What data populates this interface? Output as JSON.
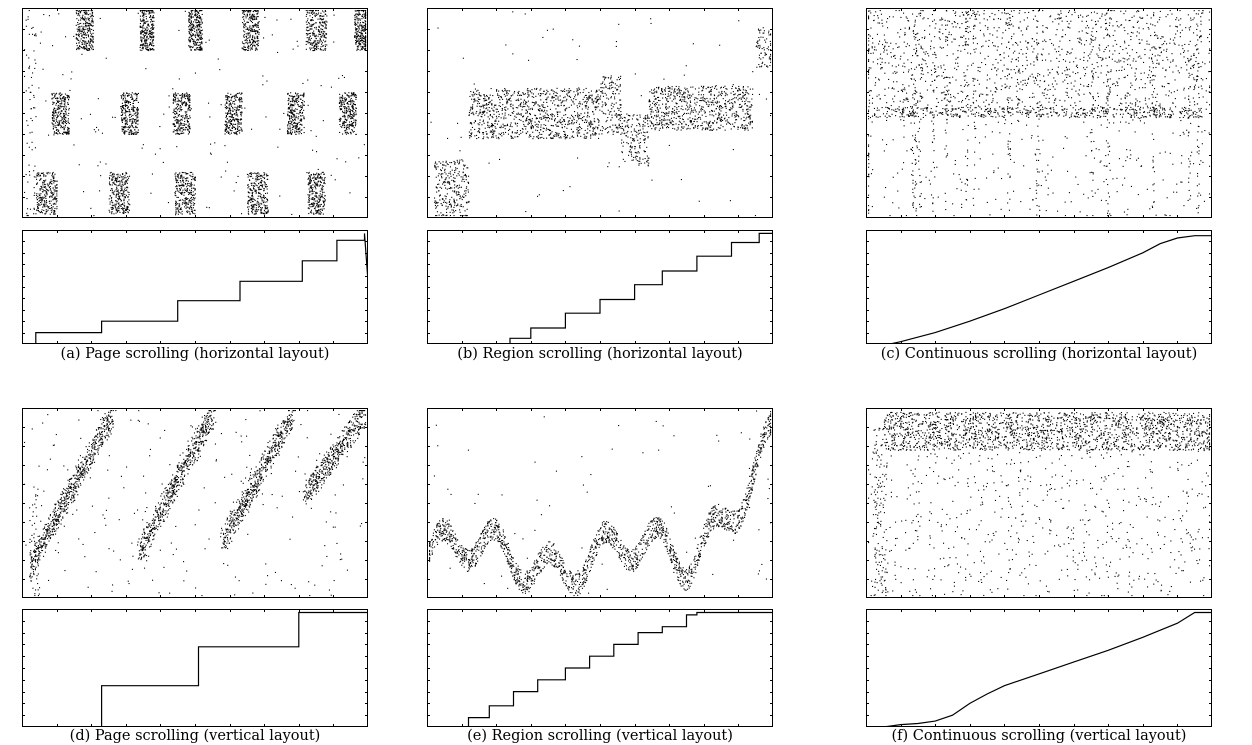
{
  "figure": {
    "panels": [
      {
        "caption": "(a) Page scrolling (horizontal layout)",
        "chart_data": [
          {
            "type": "scatter",
            "title": "",
            "xlabel": "",
            "ylabel": "",
            "grid": false,
            "pattern": "page-horizontal",
            "description_levels": [
              "bottom",
              "middle",
              "top"
            ]
          },
          {
            "type": "line",
            "title": "",
            "xlabel": "",
            "ylabel": "",
            "xlim": [
              0,
              1
            ],
            "ylim": [
              0,
              1
            ],
            "x": [
              0,
              0.04,
              0.04,
              0.23,
              0.23,
              0.45,
              0.45,
              0.63,
              0.63,
              0.81,
              0.81,
              0.91,
              0.91,
              0.99,
              0.99,
              1.0
            ],
            "y": [
              0.0,
              0.0,
              0.1,
              0.1,
              0.2,
              0.2,
              0.38,
              0.38,
              0.55,
              0.55,
              0.73,
              0.73,
              0.91,
              0.91,
              0.97,
              0.55
            ]
          }
        ]
      },
      {
        "caption": "(b) Region scrolling (horizontal layout)",
        "chart_data": [
          {
            "type": "scatter",
            "title": "",
            "xlabel": "",
            "ylabel": "",
            "grid": false,
            "pattern": "region-horizontal"
          },
          {
            "type": "line",
            "title": "",
            "xlabel": "",
            "ylabel": "",
            "xlim": [
              0,
              1
            ],
            "ylim": [
              0,
              1
            ],
            "x": [
              0.24,
              0.24,
              0.3,
              0.3,
              0.4,
              0.4,
              0.5,
              0.5,
              0.6,
              0.6,
              0.68,
              0.68,
              0.78,
              0.78,
              0.88,
              0.88,
              0.96,
              0.96,
              1.0
            ],
            "y": [
              0.0,
              0.05,
              0.05,
              0.14,
              0.14,
              0.27,
              0.27,
              0.39,
              0.39,
              0.52,
              0.52,
              0.64,
              0.64,
              0.77,
              0.77,
              0.89,
              0.89,
              0.97,
              0.97
            ]
          }
        ]
      },
      {
        "caption": "(c) Continuous scrolling (horizontal layout)",
        "chart_data": [
          {
            "type": "scatter",
            "title": "",
            "xlabel": "",
            "ylabel": "",
            "grid": false,
            "pattern": "continuous-horizontal"
          },
          {
            "type": "line",
            "title": "",
            "xlabel": "",
            "ylabel": "",
            "xlim": [
              0,
              1
            ],
            "ylim": [
              0,
              1
            ],
            "x": [
              0.07,
              0.1,
              0.2,
              0.3,
              0.4,
              0.5,
              0.6,
              0.7,
              0.8,
              0.85,
              0.9,
              0.95,
              1.0
            ],
            "y": [
              0.0,
              0.02,
              0.1,
              0.2,
              0.31,
              0.43,
              0.55,
              0.67,
              0.8,
              0.88,
              0.93,
              0.95,
              0.95
            ]
          }
        ]
      },
      {
        "caption": "(d) Page scrolling (vertical layout)",
        "chart_data": [
          {
            "type": "scatter",
            "title": "",
            "xlabel": "",
            "ylabel": "",
            "grid": false,
            "pattern": "page-vertical"
          },
          {
            "type": "line",
            "title": "",
            "xlabel": "",
            "ylabel": "",
            "xlim": [
              0,
              1
            ],
            "ylim": [
              0,
              1
            ],
            "x": [
              0.23,
              0.23,
              0.51,
              0.51,
              0.8,
              0.8,
              1.0
            ],
            "y": [
              0.0,
              0.35,
              0.35,
              0.68,
              0.68,
              0.97,
              0.97
            ]
          }
        ]
      },
      {
        "caption": "(e) Region scrolling (vertical layout)",
        "chart_data": [
          {
            "type": "scatter",
            "title": "",
            "xlabel": "",
            "ylabel": "",
            "grid": false,
            "pattern": "region-vertical"
          },
          {
            "type": "line",
            "title": "",
            "xlabel": "",
            "ylabel": "",
            "xlim": [
              0,
              1
            ],
            "ylim": [
              0,
              1
            ],
            "x": [
              0.1,
              0.12,
              0.12,
              0.18,
              0.18,
              0.25,
              0.25,
              0.32,
              0.32,
              0.4,
              0.4,
              0.47,
              0.47,
              0.54,
              0.54,
              0.61,
              0.61,
              0.68,
              0.68,
              0.75,
              0.75,
              0.78,
              0.78,
              1.0
            ],
            "y": [
              0.0,
              0.0,
              0.08,
              0.08,
              0.18,
              0.18,
              0.3,
              0.3,
              0.4,
              0.4,
              0.5,
              0.5,
              0.6,
              0.6,
              0.7,
              0.7,
              0.8,
              0.8,
              0.85,
              0.85,
              0.95,
              0.95,
              0.97,
              0.97
            ]
          }
        ]
      },
      {
        "caption": "(f) Continuous scrolling (vertical layout)",
        "chart_data": [
          {
            "type": "scatter",
            "title": "",
            "xlabel": "",
            "ylabel": "",
            "grid": false,
            "pattern": "continuous-vertical"
          },
          {
            "type": "line",
            "title": "",
            "xlabel": "",
            "ylabel": "",
            "xlim": [
              0,
              1
            ],
            "ylim": [
              0,
              1
            ],
            "x": [
              0.05,
              0.1,
              0.15,
              0.2,
              0.25,
              0.3,
              0.35,
              0.4,
              0.5,
              0.6,
              0.7,
              0.8,
              0.9,
              0.95,
              1.0
            ],
            "y": [
              0.0,
              0.02,
              0.03,
              0.05,
              0.1,
              0.2,
              0.28,
              0.35,
              0.45,
              0.55,
              0.65,
              0.76,
              0.88,
              0.97,
              0.97
            ]
          }
        ]
      }
    ]
  }
}
